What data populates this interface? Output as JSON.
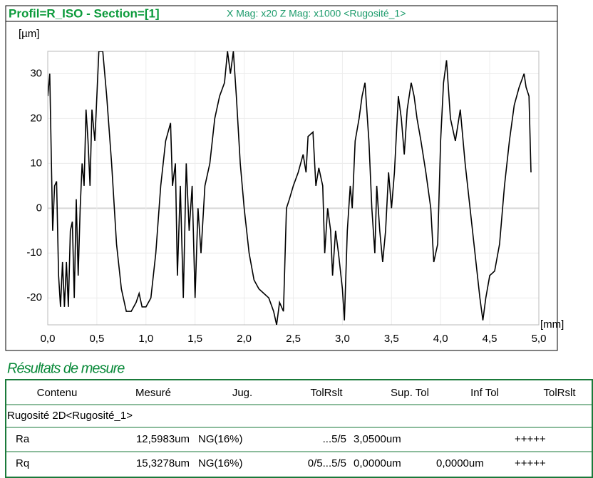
{
  "chart_data": {
    "type": "line",
    "title": "Profil=R_ISO - Section=[1]",
    "subtitle": "X Mag: x20  Z Mag: x1000 <Rugosité_1>",
    "ylabel": "[µm]",
    "xlabel": "[mm]",
    "x": [
      0.0,
      0.02,
      0.05,
      0.07,
      0.09,
      0.11,
      0.13,
      0.15,
      0.17,
      0.19,
      0.21,
      0.23,
      0.25,
      0.27,
      0.29,
      0.31,
      0.33,
      0.35,
      0.37,
      0.39,
      0.41,
      0.43,
      0.45,
      0.48,
      0.52,
      0.56,
      0.6,
      0.65,
      0.7,
      0.75,
      0.8,
      0.85,
      0.9,
      0.93,
      0.96,
      1.0,
      1.05,
      1.1,
      1.15,
      1.2,
      1.25,
      1.27,
      1.3,
      1.32,
      1.35,
      1.38,
      1.41,
      1.44,
      1.47,
      1.5,
      1.53,
      1.56,
      1.6,
      1.65,
      1.7,
      1.75,
      1.8,
      1.83,
      1.86,
      1.89,
      1.92,
      1.96,
      2.0,
      2.05,
      2.1,
      2.15,
      2.2,
      2.25,
      2.3,
      2.33,
      2.36,
      2.4,
      2.43,
      2.46,
      2.5,
      2.55,
      2.6,
      2.63,
      2.65,
      2.7,
      2.73,
      2.76,
      2.8,
      2.82,
      2.85,
      2.88,
      2.9,
      2.93,
      2.96,
      3.0,
      3.02,
      3.05,
      3.08,
      3.1,
      3.13,
      3.17,
      3.2,
      3.23,
      3.27,
      3.3,
      3.33,
      3.35,
      3.38,
      3.41,
      3.44,
      3.47,
      3.5,
      3.53,
      3.57,
      3.6,
      3.63,
      3.66,
      3.7,
      3.73,
      3.76,
      3.8,
      3.85,
      3.9,
      3.93,
      3.97,
      4.0,
      4.03,
      4.06,
      4.1,
      4.15,
      4.2,
      4.25,
      4.3,
      4.35,
      4.4,
      4.43,
      4.46,
      4.5,
      4.55,
      4.6,
      4.65,
      4.7,
      4.75,
      4.8,
      4.85,
      4.87,
      4.9,
      4.92
    ],
    "series": [
      {
        "name": "Profil",
        "color": "#000000",
        "values": [
          25,
          30,
          -5,
          5,
          6,
          -15,
          -22,
          -12,
          -22,
          -12,
          -22,
          -5,
          -3,
          -20,
          2,
          -15,
          0,
          10,
          5,
          22,
          15,
          5,
          22,
          15,
          35,
          35,
          25,
          10,
          -8,
          -18,
          -23,
          -23,
          -21,
          -19,
          -22,
          -22,
          -20,
          -10,
          5,
          15,
          19,
          5,
          10,
          -15,
          5,
          -20,
          10,
          -5,
          5,
          -20,
          0,
          -10,
          5,
          10,
          20,
          25,
          28,
          35,
          30,
          35,
          25,
          10,
          0,
          -10,
          -16,
          -18,
          -19,
          -20,
          -23,
          -26,
          -21,
          -23,
          0,
          2,
          5,
          8,
          12,
          8,
          16,
          17,
          5,
          9,
          5,
          -10,
          0,
          -5,
          -15,
          -5,
          -10,
          -18,
          -25,
          -5,
          5,
          0,
          15,
          20,
          25,
          28,
          15,
          0,
          -10,
          5,
          -5,
          -12,
          -5,
          8,
          0,
          8,
          25,
          20,
          12,
          22,
          28,
          25,
          20,
          15,
          8,
          0,
          -12,
          -8,
          15,
          28,
          33,
          20,
          15,
          22,
          10,
          0,
          -10,
          -20,
          -25,
          -20,
          -15,
          -14,
          -8,
          5,
          15,
          23,
          27,
          30,
          27,
          25,
          8
        ]
      }
    ],
    "xlim": [
      0,
      5
    ],
    "ylim": [
      -26,
      35
    ],
    "xticks": [
      {
        "value": 0,
        "label": "0,0"
      },
      {
        "value": 0.5,
        "label": "0,5"
      },
      {
        "value": 1,
        "label": "1,0"
      },
      {
        "value": 1.5,
        "label": "1,5"
      },
      {
        "value": 2,
        "label": "2,0"
      },
      {
        "value": 2.5,
        "label": "2,5"
      },
      {
        "value": 3,
        "label": "3,0"
      },
      {
        "value": 3.5,
        "label": "3,5"
      },
      {
        "value": 4,
        "label": "4,0"
      },
      {
        "value": 4.5,
        "label": "4,5"
      },
      {
        "value": 5,
        "label": "5,0"
      }
    ],
    "yticks": [
      -20,
      -10,
      0,
      10,
      20,
      30
    ],
    "grid": true
  },
  "results": {
    "title": "Résultats de mesure",
    "columns": [
      "Contenu",
      "Mesuré",
      "Jug.",
      "TolRslt",
      "Sup. Tol",
      "Inf Tol",
      "TolRslt"
    ],
    "group": "Rugosité 2D<Rugosité_1>",
    "rows": [
      [
        "Ra",
        "12,5983um",
        "NG(16%)",
        "...5/5",
        "3,0500um",
        null,
        "+++++"
      ],
      [
        "Rq",
        "15,3278um",
        "NG(16%)",
        "0/5...5/5",
        "0,0000um",
        "0,0000um",
        "+++++"
      ]
    ]
  }
}
